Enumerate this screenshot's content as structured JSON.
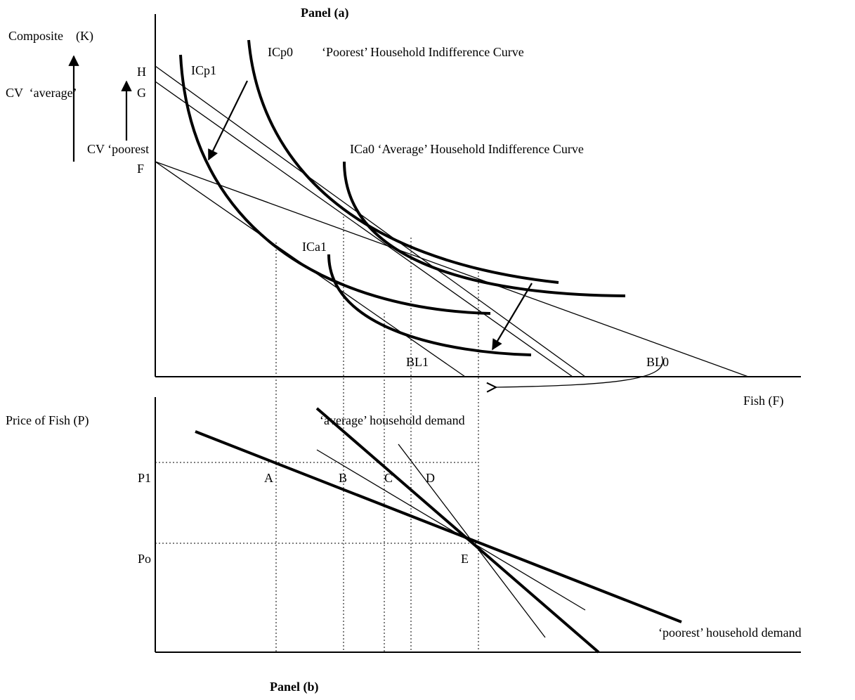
{
  "panel_a": {
    "title": "Panel (a)",
    "y_axis_label": "Composite    (K)",
    "x_axis_label": "Fish (F)",
    "cv_average_label": "CV  ‘average’",
    "cv_poorest_label": "CV ‘poorest",
    "point_h": "H",
    "point_g": "G",
    "point_f": "F",
    "curve_icp0": "ICp0",
    "icp0_description": "‘Poorest’ Household Indifference Curve",
    "curve_icp1": "ICp1",
    "curve_ica0_label": "ICa0 ‘Average’ Household Indifference Curve",
    "curve_ica1": "ICa1",
    "budget_line_1": "BL1",
    "budget_line_0": "BL0"
  },
  "panel_b": {
    "title": "Panel (b)",
    "y_axis_label": "Price of Fish (P)",
    "price_p1": "P1",
    "price_po": "Po",
    "point_a": "A",
    "point_b": "B",
    "point_c": "C",
    "point_d": "D",
    "point_e": "E",
    "average_demand_label": "‘average’ household demand",
    "poorest_demand_label": "‘poorest’ household demand"
  }
}
